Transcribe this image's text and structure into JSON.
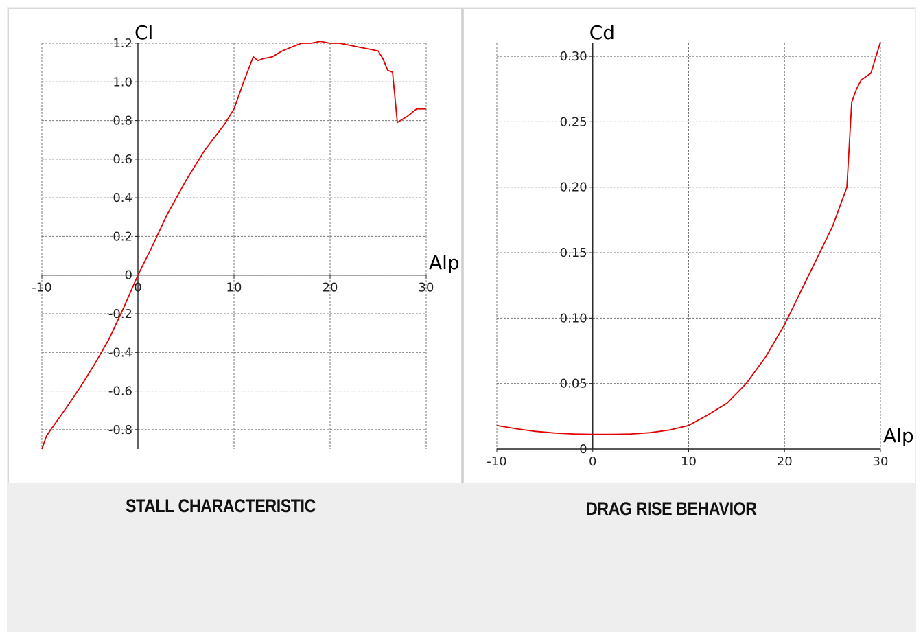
{
  "chart_data": [
    {
      "type": "line",
      "title": "",
      "xlabel": "Alp",
      "ylabel": "Cl",
      "xlim": [
        -10,
        30
      ],
      "ylim": [
        -0.9,
        1.2
      ],
      "grid": true,
      "x_ticks": [
        -10,
        0,
        10,
        20,
        30
      ],
      "y_ticks": [
        -0.8,
        -0.6,
        -0.4,
        -0.2,
        0,
        0.2,
        0.4,
        0.6,
        0.8,
        1.0,
        1.2
      ],
      "x_tick_labels": [
        "-10",
        "0",
        "10",
        "20",
        "30"
      ],
      "y_tick_labels": [
        "-0.8",
        "-0.6",
        "-0.4",
        "-0.2",
        "0",
        "0.2",
        "0.4",
        "0.6",
        "0.8",
        "1.0",
        "1.2"
      ],
      "color": "#e00000",
      "series": [
        {
          "x": [
            -10,
            -9.5,
            -8.5,
            -7.5,
            -6,
            -4.5,
            -3,
            -1.5,
            0,
            1.5,
            3,
            5,
            7,
            9,
            10,
            11,
            12,
            12.5,
            13,
            14,
            15,
            16,
            17,
            18,
            19,
            20,
            21,
            22,
            23,
            24,
            25,
            25.5,
            26,
            26.5,
            27,
            28,
            29,
            30
          ],
          "y": [
            -0.9,
            -0.83,
            -0.76,
            -0.69,
            -0.58,
            -0.46,
            -0.33,
            -0.17,
            0,
            0.15,
            0.31,
            0.49,
            0.65,
            0.78,
            0.86,
            1.0,
            1.13,
            1.11,
            1.12,
            1.13,
            1.16,
            1.18,
            1.2,
            1.2,
            1.21,
            1.2,
            1.2,
            1.19,
            1.18,
            1.17,
            1.16,
            1.12,
            1.06,
            1.05,
            0.79,
            0.82,
            0.86,
            0.86
          ]
        }
      ]
    },
    {
      "type": "line",
      "title": "",
      "xlabel": "Alp",
      "ylabel": "Cd",
      "xlim": [
        -10,
        30
      ],
      "ylim": [
        0,
        0.31
      ],
      "grid": true,
      "x_ticks": [
        -10,
        0,
        10,
        20,
        30
      ],
      "y_ticks": [
        0,
        0.05,
        0.1,
        0.15,
        0.2,
        0.25,
        0.3
      ],
      "x_tick_labels": [
        "-10",
        "0",
        "10",
        "20",
        "30"
      ],
      "y_tick_labels": [
        "0",
        "0.05",
        "0.10",
        "0.15",
        "0.20",
        "0.25",
        "0.30"
      ],
      "color": "#e00000",
      "series": [
        {
          "x": [
            -10,
            -8,
            -6,
            -4,
            -2,
            0,
            2,
            4,
            6,
            8,
            10,
            12,
            14,
            16,
            18,
            20,
            22,
            24,
            25,
            26,
            26.5,
            27,
            27.5,
            28,
            29,
            30
          ],
          "y": [
            0.018,
            0.0155,
            0.0135,
            0.0122,
            0.0115,
            0.0112,
            0.0112,
            0.0115,
            0.0125,
            0.0145,
            0.018,
            0.026,
            0.035,
            0.05,
            0.07,
            0.095,
            0.125,
            0.155,
            0.17,
            0.19,
            0.2,
            0.265,
            0.275,
            0.282,
            0.287,
            0.311
          ]
        }
      ]
    }
  ],
  "captions": {
    "left": "STALL CHARACTERISTIC",
    "right": "DRAG RISE BEHAVIOR"
  }
}
